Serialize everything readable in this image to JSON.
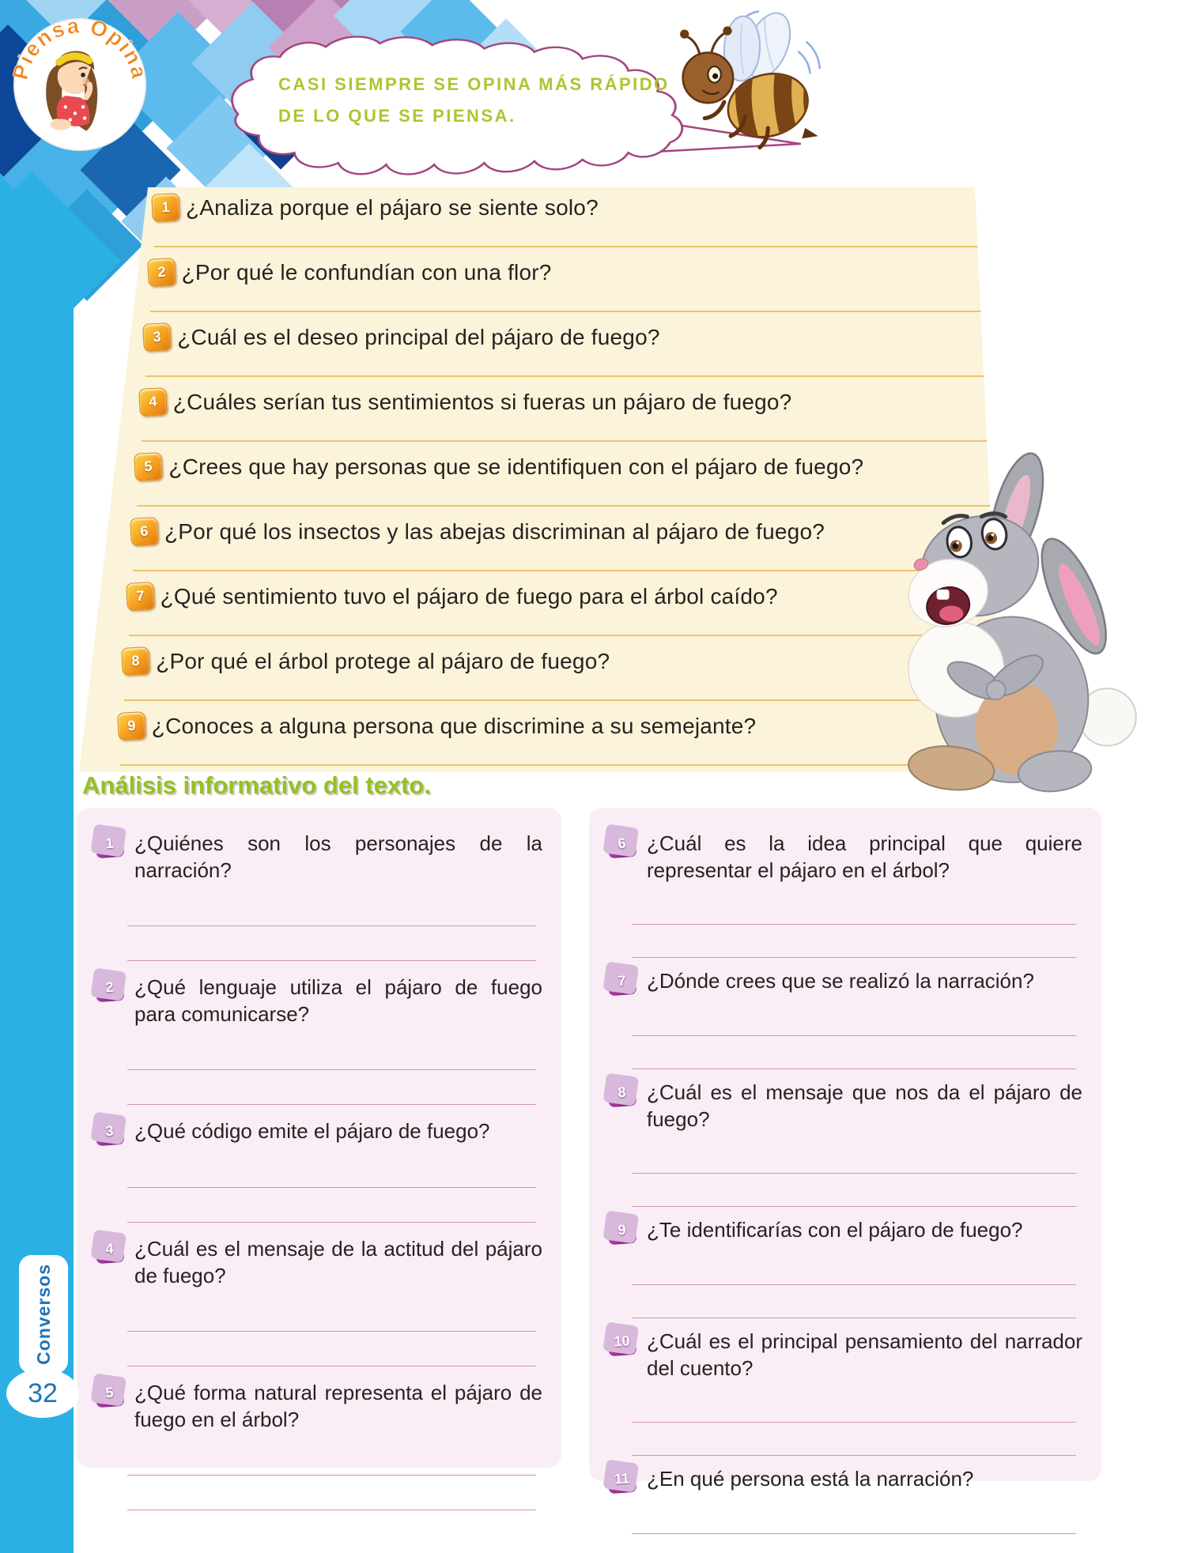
{
  "page": {
    "number": "32",
    "side_tab_label": "Conversos"
  },
  "header": {
    "badge_title": "Piensa Opina",
    "bubble_line1": "CASI SIEMPRE SE OPINA MÁS RÁPIDO",
    "bubble_line2": "DE LO QUE SE PIENSA."
  },
  "opinion_questions": [
    {
      "num": "1",
      "text": "¿Analiza porque el pájaro se siente solo?"
    },
    {
      "num": "2",
      "text": "¿Por qué le confundían con una flor?"
    },
    {
      "num": "3",
      "text": "¿Cuál es el deseo principal del pájaro de fuego?"
    },
    {
      "num": "4",
      "text": "¿Cuáles serían tus sentimientos si fueras un pájaro de fuego?"
    },
    {
      "num": "5",
      "text": "¿Crees que hay personas que se identifiquen con el pájaro de fuego?"
    },
    {
      "num": "6",
      "text": "¿Por qué los insectos y las abejas discriminan al pájaro de fuego?"
    },
    {
      "num": "7",
      "text": "¿Qué sentimiento tuvo el pájaro de fuego para el árbol caído?"
    },
    {
      "num": "8",
      "text": "¿Por qué el árbol protege al pájaro de fuego?"
    },
    {
      "num": "9",
      "text": "¿Conoces a alguna persona que discrimine a su semejante?"
    }
  ],
  "analysis": {
    "title": "Análisis informativo del texto.",
    "left": [
      {
        "num": "1",
        "text": "¿Quiénes son los personajes de la narración?",
        "lines": 2
      },
      {
        "num": "2",
        "text": "¿Qué lenguaje utiliza el pájaro de fuego para comunicarse?",
        "lines": 2
      },
      {
        "num": "3",
        "text": "¿Qué código emite el pájaro de fuego?",
        "lines": 2
      },
      {
        "num": "4",
        "text": "¿Cuál es el mensaje de la actitud del pájaro de fuego?",
        "lines": 2
      },
      {
        "num": "5",
        "text": "¿Qué forma natural representa el pájaro de fuego en el árbol?",
        "lines": 2
      }
    ],
    "right": [
      {
        "num": "6",
        "text": "¿Cuál es la idea principal que quiere representar el pájaro en el árbol?",
        "lines": 2
      },
      {
        "num": "7",
        "text": "¿Dónde crees que se realizó la narración?",
        "lines": 2
      },
      {
        "num": "8",
        "text": "¿Cuál es el mensaje que nos da el pájaro de fuego?",
        "lines": 2
      },
      {
        "num": "9",
        "text": "¿Te identificarías con el pájaro de fuego?",
        "lines": 2
      },
      {
        "num": "10",
        "text": "¿Cuál es el principal pensamiento del narrador del cuento?",
        "lines": 2
      },
      {
        "num": "11",
        "text": "¿En qué persona está la narración?",
        "lines": 1
      }
    ]
  },
  "colors": {
    "sidebar_blue": "#2bb0e4",
    "cream_panel": "#fbf4da",
    "cream_line": "#edc36c",
    "orange_badge": "#f5a01f",
    "pink_panel": "#f9eef6",
    "pink_line": "#d391ba",
    "purple_badge": "#93278f",
    "heading_green": "#95c11f",
    "bubble_text_green": "#b2c32e",
    "bubble_outline_purple": "#a5457f",
    "tab_text_blue": "#1e74b8"
  }
}
